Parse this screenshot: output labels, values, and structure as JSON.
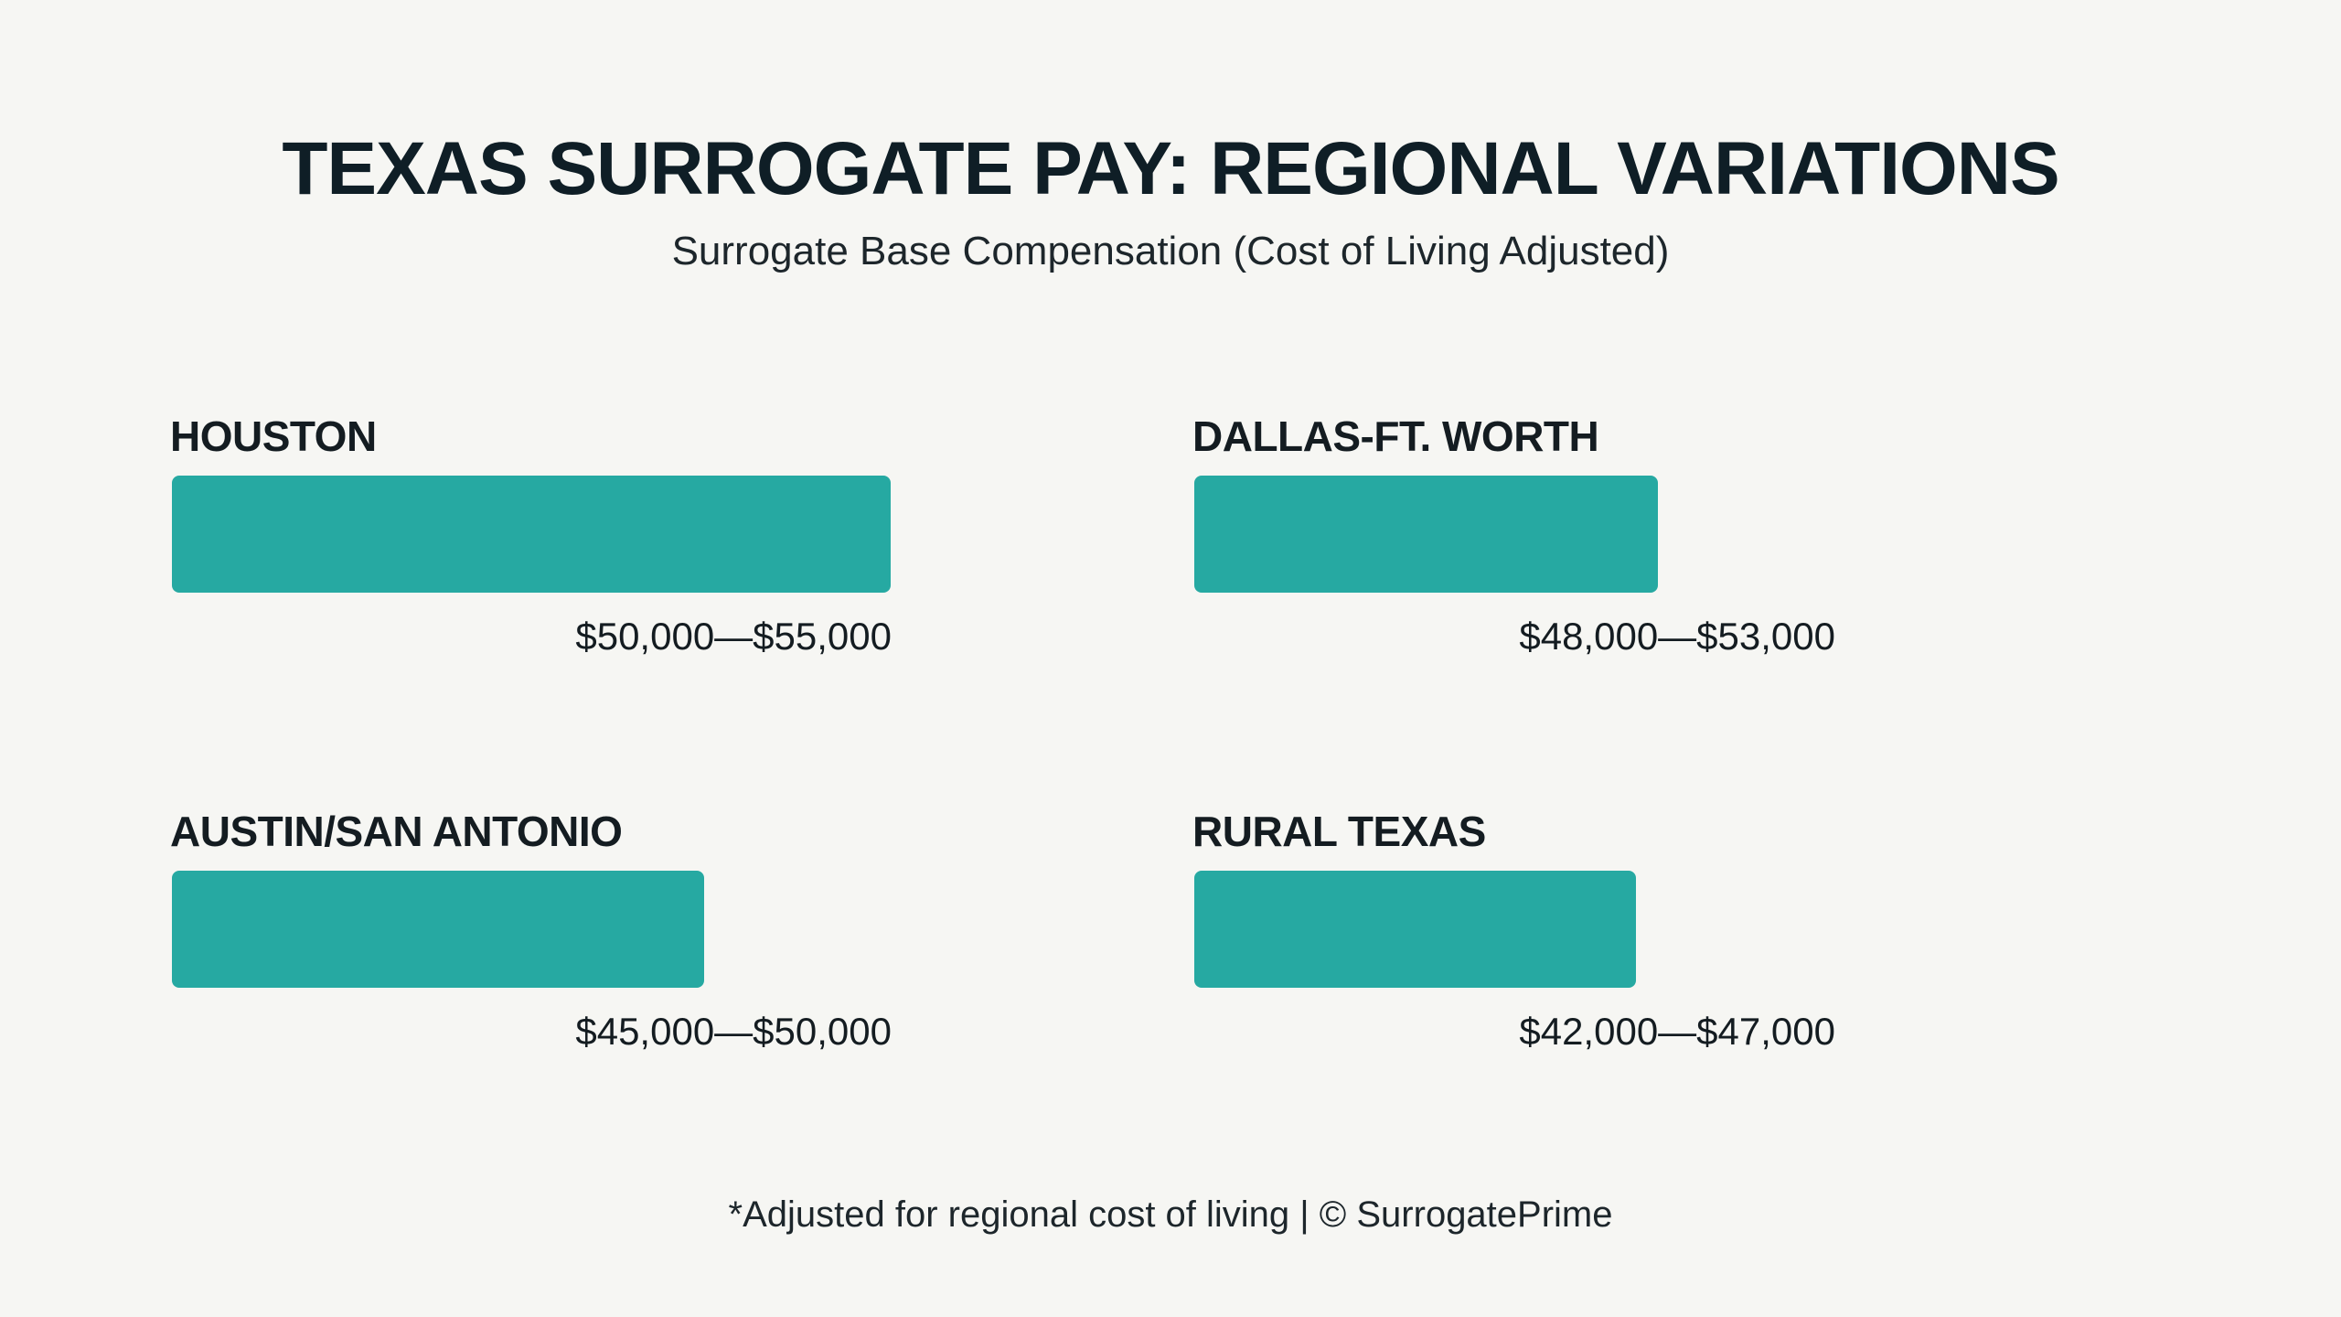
{
  "title": "TEXAS SURROGATE PAY: REGIONAL VARIATIONS",
  "subtitle": "Surrogate Base Compensation (Cost of Living Adjusted)",
  "footer": "*Adjusted for regional cost of living | © SurrogatePrime",
  "colors": {
    "bar": "#26a9a2",
    "text": "#141c21",
    "background": "#f6f6f3"
  },
  "chart_data": {
    "type": "bar",
    "orientation": "horizontal",
    "title": "TEXAS SURROGATE PAY: REGIONAL VARIATIONS",
    "subtitle": "Surrogate Base Compensation (Cost of Living Adjusted)",
    "xlabel": "",
    "ylabel": "",
    "grid": false,
    "categories": [
      "HOUSTON",
      "DALLAS-FT. WORTH",
      "AUSTIN/SAN ANTONIO",
      "RURAL TEXAS"
    ],
    "ranges": [
      [
        50000,
        55000
      ],
      [
        48000,
        53000
      ],
      [
        45000,
        50000
      ],
      [
        42000,
        47000
      ]
    ],
    "value_labels": [
      "$50,000—$55,000",
      "$48,000—$53,000",
      "$45,000—$50,000",
      "$42,000—$47,000"
    ],
    "bar_fill_fraction": [
      1.0,
      0.645,
      0.74,
      0.615
    ]
  }
}
